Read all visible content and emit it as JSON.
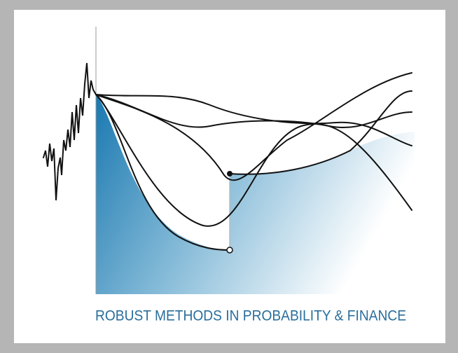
{
  "logo": {
    "caption": "ROBUST METHODS IN PROBABILITY & FINANCE"
  }
}
